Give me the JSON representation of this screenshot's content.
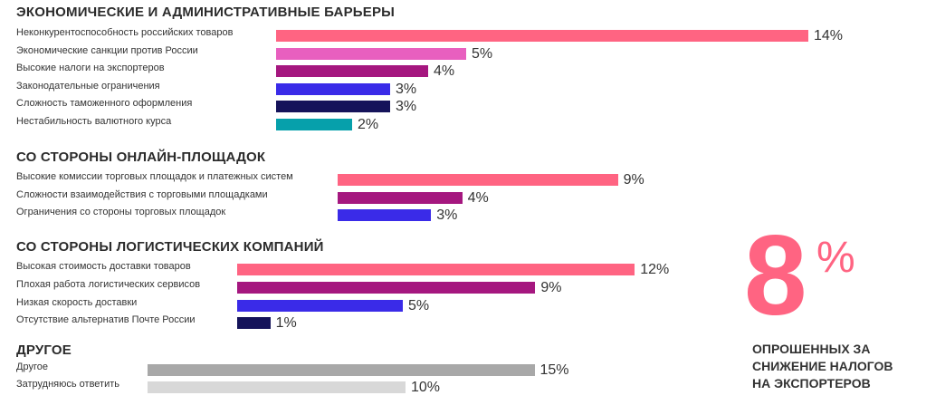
{
  "chart_data": {
    "type": "bar",
    "orientation": "horizontal",
    "unit": "%",
    "groups": [
      {
        "title": "ЭКОНОМИЧЕСКИЕ И АДМИНИСТРАТИВНЫЕ БАРЬЕРЫ",
        "items": [
          {
            "label": "Неконкурентоспособность российских товаров",
            "value": 14,
            "color": "#ff6482"
          },
          {
            "label": "Экономические санкции против России",
            "value": 5,
            "color": "#e85fbf"
          },
          {
            "label": "Высокие налоги на экспортеров",
            "value": 4,
            "color": "#a5177f"
          },
          {
            "label": "Законодательные ограничения",
            "value": 3,
            "color": "#3a2be8"
          },
          {
            "label": "Сложность таможенного оформления",
            "value": 3,
            "color": "#15135a"
          },
          {
            "label": "Нестабильность валютного курса",
            "value": 2,
            "color": "#06a0ab"
          }
        ]
      },
      {
        "title": "СО СТОРОНЫ ОНЛАЙН-ПЛОЩАДОК",
        "items": [
          {
            "label": "Высокие комиссии торговых площадок и платежных систем",
            "value": 9,
            "color": "#ff6482"
          },
          {
            "label": "Сложности взаимодействия с торговыми площадками",
            "value": 4,
            "color": "#a5177f"
          },
          {
            "label": "Ограничения со стороны торговых площадок",
            "value": 3,
            "color": "#3a2be8"
          }
        ]
      },
      {
        "title": "СО СТОРОНЫ ЛОГИСТИЧЕСКИХ КОМПАНИЙ",
        "items": [
          {
            "label": "Высокая стоимость доставки товаров",
            "value": 12,
            "color": "#ff6482"
          },
          {
            "label": "Плохая работа логистических сервисов",
            "value": 9,
            "color": "#a5177f"
          },
          {
            "label": "Низкая скорость доставки",
            "value": 5,
            "color": "#3a2be8"
          },
          {
            "label": "Отсутствие альтернатив Почте России",
            "value": 1,
            "color": "#15135a"
          }
        ]
      },
      {
        "title": "ДРУГОЕ",
        "items": [
          {
            "label": "Другое",
            "value": 15,
            "color": "#a8a8a8"
          },
          {
            "label": "Затрудняюсь ответить",
            "value": 10,
            "color": "#d8d8d8"
          }
        ]
      }
    ]
  },
  "callout": {
    "value": "8",
    "percent": "%",
    "text": [
      "ОПРОШЕННЫХ ЗА",
      "СНИЖЕНИЕ НАЛОГОВ",
      "НА ЭКСПОРТЕРОВ"
    ]
  }
}
